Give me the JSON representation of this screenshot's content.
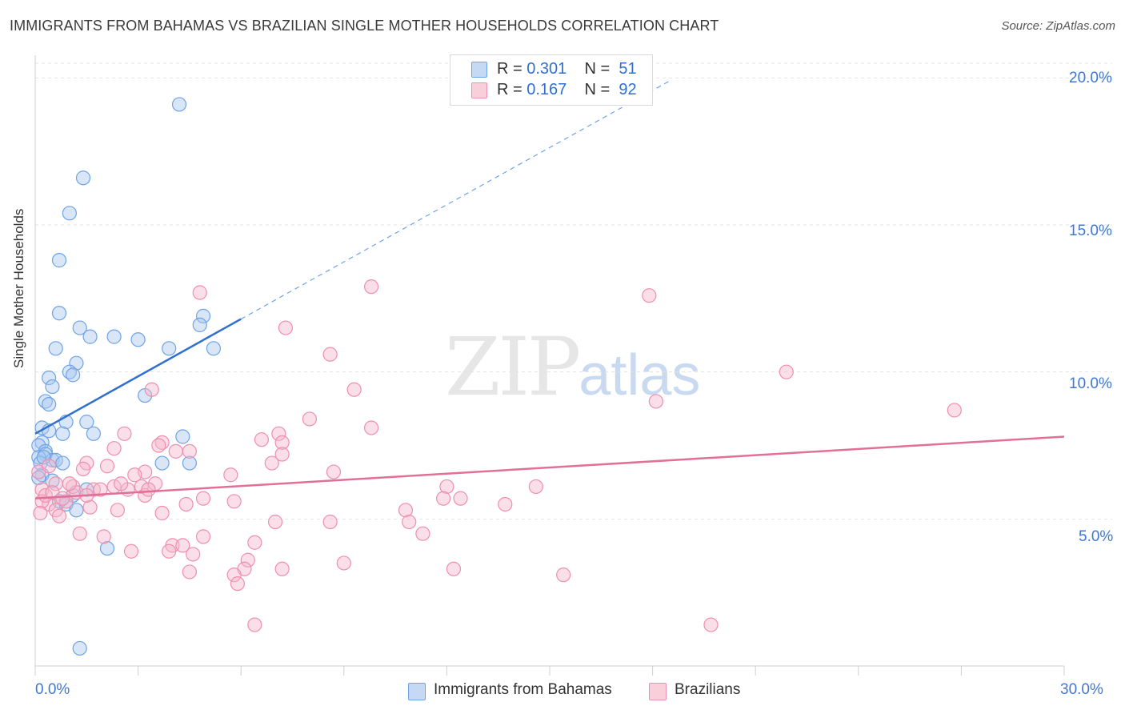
{
  "header": {
    "title": "IMMIGRANTS FROM BAHAMAS VS BRAZILIAN SINGLE MOTHER HOUSEHOLDS CORRELATION CHART",
    "source": "Source: ZipAtlas.com"
  },
  "watermark": {
    "zip": "ZIP",
    "atlas": "atlas"
  },
  "legend": {
    "rows": [
      {
        "r_label": "R = ",
        "r_value": "0.301",
        "n_label": "N = ",
        "n_value": "51",
        "color": "#a9c8f0"
      },
      {
        "r_label": "R = ",
        "r_value": "0.167",
        "n_label": "N = ",
        "n_value": "92",
        "color": "#f5b8cb"
      }
    ]
  },
  "bottom_legend": [
    {
      "label": "Immigrants from Bahamas",
      "color": "#a9c8f0"
    },
    {
      "label": "Brazilians",
      "color": "#f5b8cb"
    }
  ],
  "chart_data": {
    "type": "scatter",
    "title": "IMMIGRANTS FROM BAHAMAS VS BRAZILIAN SINGLE MOTHER HOUSEHOLDS CORRELATION CHART",
    "xlabel": "",
    "ylabel": "Single Mother Households",
    "xlim": [
      0,
      30
    ],
    "ylim": [
      0,
      20.5
    ],
    "x_tick_labels": [
      "0.0%",
      "30.0%"
    ],
    "y_ticks": [
      5,
      10,
      15,
      20
    ],
    "y_tick_labels": [
      "5.0%",
      "10.0%",
      "15.0%",
      "20.0%"
    ],
    "grid": true,
    "legend_position": "top-center",
    "series": [
      {
        "name": "Immigrants from Bahamas",
        "color": "#6fa3e6",
        "fill": "#a9c8f0",
        "line_color": "#2f6fd0",
        "trend": {
          "x0": 0.0,
          "y0": 7.9,
          "x1": 6.0,
          "y1": 11.8,
          "dash_to_x": 18.5,
          "dash_to_y": 19.9
        },
        "points": [
          [
            4.2,
            19.1
          ],
          [
            1.4,
            16.6
          ],
          [
            1.0,
            15.4
          ],
          [
            0.7,
            13.8
          ],
          [
            0.7,
            12.0
          ],
          [
            1.3,
            11.5
          ],
          [
            1.6,
            11.2
          ],
          [
            2.3,
            11.2
          ],
          [
            3.0,
            11.1
          ],
          [
            4.9,
            11.9
          ],
          [
            4.8,
            11.6
          ],
          [
            0.6,
            10.8
          ],
          [
            1.2,
            10.3
          ],
          [
            3.9,
            10.8
          ],
          [
            5.2,
            10.8
          ],
          [
            1.0,
            10.0
          ],
          [
            1.1,
            9.9
          ],
          [
            0.4,
            9.8
          ],
          [
            0.5,
            9.5
          ],
          [
            3.2,
            9.2
          ],
          [
            0.3,
            9.0
          ],
          [
            0.4,
            8.9
          ],
          [
            0.9,
            8.3
          ],
          [
            1.5,
            8.3
          ],
          [
            0.2,
            8.1
          ],
          [
            0.4,
            8.0
          ],
          [
            0.8,
            7.9
          ],
          [
            1.7,
            7.9
          ],
          [
            4.3,
            7.8
          ],
          [
            0.2,
            7.6
          ],
          [
            0.1,
            7.5
          ],
          [
            0.3,
            7.3
          ],
          [
            0.3,
            7.2
          ],
          [
            0.1,
            7.1
          ],
          [
            0.5,
            7.0
          ],
          [
            0.6,
            7.0
          ],
          [
            0.8,
            6.9
          ],
          [
            3.7,
            6.9
          ],
          [
            4.5,
            6.9
          ],
          [
            0.2,
            6.5
          ],
          [
            0.1,
            6.4
          ],
          [
            0.5,
            6.3
          ],
          [
            1.5,
            6.0
          ],
          [
            1.1,
            5.8
          ],
          [
            0.7,
            5.6
          ],
          [
            0.9,
            5.5
          ],
          [
            1.2,
            5.3
          ],
          [
            2.1,
            4.0
          ],
          [
            1.3,
            0.6
          ],
          [
            0.15,
            6.9
          ],
          [
            0.25,
            7.1
          ]
        ]
      },
      {
        "name": "Brazilians",
        "color": "#ef8fae",
        "fill": "#f5b8cb",
        "line_color": "#e07097",
        "trend": {
          "x0": 0.0,
          "y0": 5.7,
          "x1": 30.0,
          "y1": 7.8
        },
        "points": [
          [
            9.8,
            12.9
          ],
          [
            17.9,
            12.6
          ],
          [
            4.8,
            12.7
          ],
          [
            7.3,
            11.5
          ],
          [
            8.6,
            10.6
          ],
          [
            21.9,
            10.0
          ],
          [
            9.3,
            9.4
          ],
          [
            3.4,
            9.4
          ],
          [
            18.1,
            9.0
          ],
          [
            26.8,
            8.7
          ],
          [
            8.0,
            8.4
          ],
          [
            9.8,
            8.1
          ],
          [
            7.1,
            7.9
          ],
          [
            6.6,
            7.7
          ],
          [
            2.6,
            7.9
          ],
          [
            7.2,
            7.6
          ],
          [
            3.7,
            7.6
          ],
          [
            3.6,
            7.5
          ],
          [
            2.3,
            7.4
          ],
          [
            4.5,
            7.3
          ],
          [
            7.2,
            7.2
          ],
          [
            4.1,
            7.3
          ],
          [
            6.9,
            6.9
          ],
          [
            1.5,
            6.9
          ],
          [
            2.1,
            6.8
          ],
          [
            1.4,
            6.7
          ],
          [
            3.2,
            6.6
          ],
          [
            8.7,
            6.6
          ],
          [
            2.9,
            6.5
          ],
          [
            5.7,
            6.5
          ],
          [
            0.6,
            6.2
          ],
          [
            1.1,
            6.1
          ],
          [
            2.3,
            6.1
          ],
          [
            3.1,
            6.1
          ],
          [
            3.5,
            6.2
          ],
          [
            14.6,
            6.1
          ],
          [
            12.0,
            6.1
          ],
          [
            1.7,
            6.0
          ],
          [
            2.7,
            6.0
          ],
          [
            1.2,
            5.9
          ],
          [
            3.2,
            5.8
          ],
          [
            0.2,
            6.0
          ],
          [
            11.9,
            5.7
          ],
          [
            12.4,
            5.7
          ],
          [
            4.9,
            5.7
          ],
          [
            5.8,
            5.6
          ],
          [
            13.7,
            5.5
          ],
          [
            4.4,
            5.5
          ],
          [
            1.6,
            5.4
          ],
          [
            10.8,
            5.3
          ],
          [
            2.4,
            5.3
          ],
          [
            3.7,
            5.2
          ],
          [
            0.4,
            5.5
          ],
          [
            0.6,
            5.3
          ],
          [
            0.7,
            5.1
          ],
          [
            0.2,
            5.6
          ],
          [
            0.9,
            5.6
          ],
          [
            7.0,
            4.9
          ],
          [
            8.6,
            4.9
          ],
          [
            10.9,
            4.9
          ],
          [
            1.3,
            4.5
          ],
          [
            2.0,
            4.4
          ],
          [
            4.9,
            4.4
          ],
          [
            11.3,
            4.5
          ],
          [
            6.4,
            4.2
          ],
          [
            4.0,
            4.1
          ],
          [
            4.3,
            4.1
          ],
          [
            2.8,
            3.9
          ],
          [
            3.9,
            3.9
          ],
          [
            4.6,
            3.8
          ],
          [
            9.0,
            3.5
          ],
          [
            6.2,
            3.6
          ],
          [
            7.2,
            3.3
          ],
          [
            12.2,
            3.3
          ],
          [
            4.5,
            3.2
          ],
          [
            6.1,
            3.3
          ],
          [
            5.8,
            3.1
          ],
          [
            15.4,
            3.1
          ],
          [
            5.9,
            2.8
          ],
          [
            6.4,
            1.4
          ],
          [
            19.7,
            1.4
          ],
          [
            0.1,
            6.6
          ],
          [
            0.3,
            5.8
          ],
          [
            0.5,
            5.9
          ],
          [
            1.0,
            6.2
          ],
          [
            1.9,
            6.0
          ],
          [
            2.5,
            6.2
          ],
          [
            3.3,
            6.0
          ],
          [
            0.8,
            5.7
          ],
          [
            0.4,
            6.8
          ],
          [
            0.15,
            5.2
          ],
          [
            1.5,
            5.8
          ]
        ]
      }
    ]
  }
}
